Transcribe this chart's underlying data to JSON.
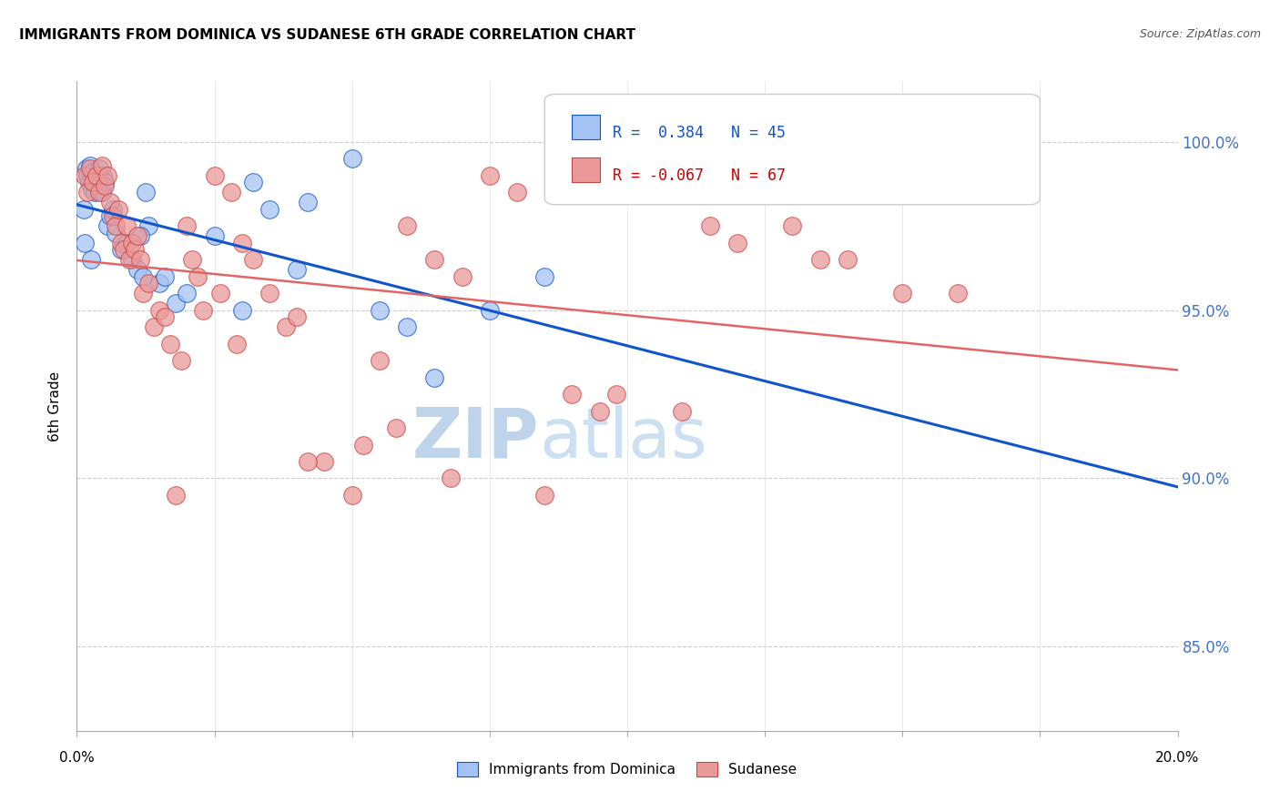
{
  "title": "IMMIGRANTS FROM DOMINICA VS SUDANESE 6TH GRADE CORRELATION CHART",
  "source": "Source: ZipAtlas.com",
  "ylabel": "6th Grade",
  "ytick_values": [
    85.0,
    90.0,
    95.0,
    100.0
  ],
  "ytick_labels": [
    "85.0%",
    "90.0%",
    "95.0%",
    "100.0%"
  ],
  "xlim": [
    0.0,
    20.0
  ],
  "ylim": [
    82.5,
    101.8
  ],
  "blue_color": "#a4c2f4",
  "pink_color": "#ea9999",
  "blue_edge": "#1155cc",
  "pink_edge": "#cc4444",
  "blue_line": "#1155cc",
  "pink_line": "#e06666",
  "watermark_zip": "ZIP",
  "watermark_atlas": "atlas",
  "watermark_color_zip": "#c9dff5",
  "watermark_color_atlas": "#c9dff5",
  "blue_x": [
    0.12,
    0.18,
    0.2,
    0.22,
    0.25,
    0.28,
    0.3,
    0.32,
    0.35,
    0.38,
    0.4,
    0.42,
    0.45,
    0.48,
    0.5,
    0.55,
    0.6,
    0.65,
    0.7,
    0.8,
    0.9,
    1.0,
    1.1,
    1.2,
    1.3,
    1.5,
    1.6,
    1.8,
    2.0,
    2.5,
    3.0,
    3.2,
    3.5,
    4.0,
    4.2,
    5.0,
    5.5,
    6.0,
    6.5,
    7.5,
    8.5,
    0.15,
    0.26,
    1.15,
    1.25
  ],
  "blue_y": [
    98.0,
    99.2,
    99.0,
    98.8,
    99.3,
    98.6,
    99.1,
    98.5,
    99.0,
    98.7,
    99.2,
    98.9,
    98.5,
    99.0,
    98.8,
    97.5,
    97.8,
    98.0,
    97.3,
    96.8,
    97.0,
    96.5,
    96.2,
    96.0,
    97.5,
    95.8,
    96.0,
    95.2,
    95.5,
    97.2,
    95.0,
    98.8,
    98.0,
    96.2,
    98.2,
    99.5,
    95.0,
    94.5,
    93.0,
    95.0,
    96.0,
    97.0,
    96.5,
    97.2,
    98.5
  ],
  "pink_x": [
    0.15,
    0.2,
    0.25,
    0.3,
    0.35,
    0.4,
    0.45,
    0.5,
    0.55,
    0.6,
    0.65,
    0.7,
    0.75,
    0.8,
    0.85,
    0.9,
    0.95,
    1.0,
    1.05,
    1.1,
    1.15,
    1.2,
    1.3,
    1.4,
    1.5,
    1.6,
    1.7,
    1.8,
    1.9,
    2.0,
    2.1,
    2.2,
    2.5,
    2.8,
    3.0,
    3.2,
    3.5,
    3.8,
    4.0,
    4.5,
    5.0,
    5.2,
    5.5,
    6.0,
    6.5,
    7.0,
    7.5,
    8.0,
    9.0,
    9.5,
    10.0,
    11.0,
    12.0,
    13.0,
    14.0,
    16.0,
    2.3,
    2.6,
    2.9,
    4.2,
    5.8,
    6.8,
    8.5,
    9.8,
    11.5,
    13.5,
    15.0
  ],
  "pink_y": [
    99.0,
    98.5,
    99.2,
    98.8,
    99.0,
    98.5,
    99.3,
    98.7,
    99.0,
    98.2,
    97.8,
    97.5,
    98.0,
    97.0,
    96.8,
    97.5,
    96.5,
    97.0,
    96.8,
    97.2,
    96.5,
    95.5,
    95.8,
    94.5,
    95.0,
    94.8,
    94.0,
    89.5,
    93.5,
    97.5,
    96.5,
    96.0,
    99.0,
    98.5,
    97.0,
    96.5,
    95.5,
    94.5,
    94.8,
    90.5,
    89.5,
    91.0,
    93.5,
    97.5,
    96.5,
    96.0,
    99.0,
    98.5,
    92.5,
    92.0,
    99.0,
    92.0,
    97.0,
    97.5,
    96.5,
    95.5,
    95.0,
    95.5,
    94.0,
    90.5,
    91.5,
    90.0,
    89.5,
    92.5,
    97.5,
    96.5,
    95.5
  ]
}
